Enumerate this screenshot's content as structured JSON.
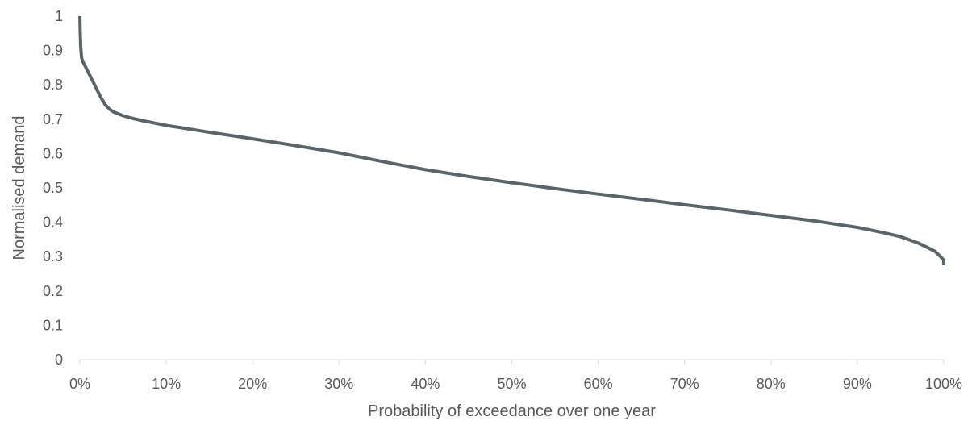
{
  "chart_data": {
    "type": "line",
    "title": "",
    "xlabel": "Probability of exceedance over one year",
    "ylabel": "Normalised demand",
    "xlim": [
      0,
      1
    ],
    "ylim": [
      0,
      1
    ],
    "x_ticks": [
      0,
      0.1,
      0.2,
      0.3,
      0.4,
      0.5,
      0.6,
      0.7,
      0.8,
      0.9,
      1.0
    ],
    "x_tick_labels": [
      "0%",
      "10%",
      "20%",
      "30%",
      "40%",
      "50%",
      "60%",
      "70%",
      "80%",
      "90%",
      "100%"
    ],
    "y_ticks": [
      0,
      0.1,
      0.2,
      0.3,
      0.4,
      0.5,
      0.6,
      0.7,
      0.8,
      0.9,
      1
    ],
    "y_tick_labels": [
      "0",
      "0.1",
      "0.2",
      "0.3",
      "0.4",
      "0.5",
      "0.6",
      "0.7",
      "0.8",
      "0.9",
      "1"
    ],
    "grid": false,
    "legend": "none",
    "series": [
      {
        "color": "#5a646b",
        "x": [
          0,
          0.0005,
          0.001,
          0.002,
          0.003,
          0.005,
          0.008,
          0.01,
          0.015,
          0.02,
          0.025,
          0.03,
          0.035,
          0.04,
          0.05,
          0.06,
          0.07,
          0.08,
          0.1,
          0.12,
          0.15,
          0.2,
          0.25,
          0.3,
          0.35,
          0.4,
          0.45,
          0.5,
          0.55,
          0.6,
          0.65,
          0.7,
          0.75,
          0.8,
          0.85,
          0.9,
          0.93,
          0.95,
          0.97,
          0.98,
          0.99,
          0.995,
          1.0,
          1.0
        ],
        "y": [
          1.0,
          0.95,
          0.91,
          0.88,
          0.87,
          0.86,
          0.845,
          0.835,
          0.81,
          0.785,
          0.76,
          0.74,
          0.728,
          0.72,
          0.71,
          0.703,
          0.697,
          0.692,
          0.682,
          0.674,
          0.662,
          0.643,
          0.623,
          0.602,
          0.577,
          0.553,
          0.533,
          0.515,
          0.498,
          0.482,
          0.467,
          0.451,
          0.436,
          0.42,
          0.404,
          0.385,
          0.37,
          0.358,
          0.34,
          0.328,
          0.315,
          0.303,
          0.29,
          0.275
        ]
      }
    ]
  }
}
